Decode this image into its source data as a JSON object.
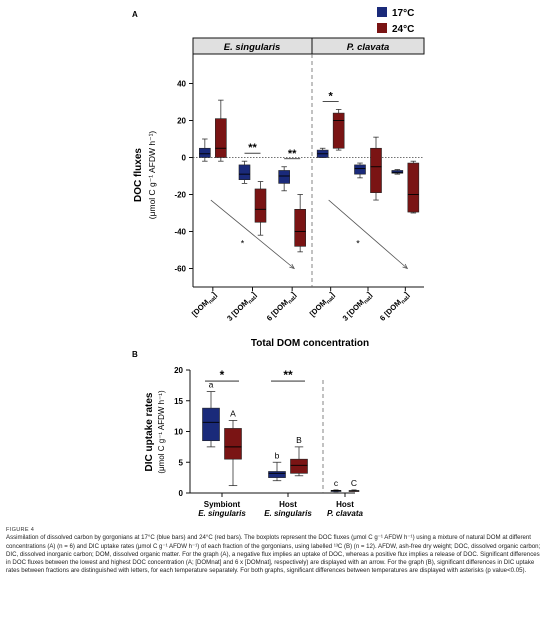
{
  "legend": {
    "items": [
      {
        "label": "17°C",
        "color": "#1a2a7a"
      },
      {
        "label": "24°C",
        "color": "#7a1414"
      }
    ],
    "placement": "top-right"
  },
  "panelA": {
    "letter": "A",
    "groups": [
      "E. singularis",
      "P. clavata"
    ],
    "ylabel_line1": "DOC fluxes",
    "ylabel_line2": "(μmol C g⁻¹ AFDW h⁻¹)",
    "xlabel": "Total DOM concentration",
    "sig_labels": [
      "**",
      "**",
      "*"
    ],
    "trend_label": "*"
  },
  "panelB": {
    "letter": "B",
    "ylabel_line1": "DIC uptake rates",
    "ylabel_line2": "(μmol C g⁻¹ AFDW h⁻¹)",
    "sig_labels": [
      "*",
      "**"
    ]
  },
  "chart_data": [
    {
      "id": "A",
      "type": "boxplot",
      "ylim": [
        -70,
        50
      ],
      "yticks": [
        -60,
        -40,
        -20,
        0,
        20,
        40
      ],
      "reference_line": 0,
      "categories": [
        "[DOMnat]",
        "3 [DOMnat]",
        "6 [DOMnat]",
        "[DOMnat]",
        "3 [DOMnat]",
        "6 [DOMnat]"
      ],
      "category_label_main": [
        "[DOM",
        "3 [DOM",
        "6 [DOM",
        "[DOM",
        "3 [DOM",
        "6 [DOM"
      ],
      "category_label_sub": "nat",
      "category_group": [
        "E. singularis",
        "E. singularis",
        "E. singularis",
        "P. clavata",
        "P. clavata",
        "P. clavata"
      ],
      "series": [
        {
          "name": "17°C",
          "boxes": [
            {
              "min": -2,
              "q1": 0,
              "median": 2,
              "q3": 5,
              "max": 10
            },
            {
              "min": -14,
              "q1": -12,
              "median": -9,
              "q3": -4,
              "max": -2
            },
            {
              "min": -18,
              "q1": -14,
              "median": -10,
              "q3": -7,
              "max": -5
            },
            {
              "min": 0,
              "q1": 0,
              "median": 2,
              "q3": 4,
              "max": 5
            },
            {
              "min": -11,
              "q1": -9,
              "median": -6,
              "q3": -4,
              "max": -3
            },
            {
              "min": -9,
              "q1": -8.5,
              "median": -8,
              "q3": -7,
              "max": -6.5
            }
          ]
        },
        {
          "name": "24°C",
          "boxes": [
            {
              "min": -2,
              "q1": 0,
              "median": 5,
              "q3": 21,
              "max": 31
            },
            {
              "min": -42,
              "q1": -35,
              "median": -28,
              "q3": -17,
              "max": -13
            },
            {
              "min": -51,
              "q1": -48,
              "median": -40,
              "q3": -28,
              "max": -20
            },
            {
              "min": 4,
              "q1": 5,
              "median": 20,
              "q3": 24,
              "max": 26
            },
            {
              "min": -23,
              "q1": -19,
              "median": -5,
              "q3": 5,
              "max": 11
            },
            {
              "min": -30,
              "q1": -29.5,
              "median": -20,
              "q3": -3,
              "max": -2
            }
          ]
        }
      ],
      "significance": [
        {
          "category": 1,
          "label": "**"
        },
        {
          "category": 2,
          "label": "**"
        },
        {
          "category": 3,
          "label": "*"
        }
      ]
    },
    {
      "id": "B",
      "type": "boxplot",
      "ylim": [
        0,
        20
      ],
      "yticks": [
        0,
        5,
        10,
        15,
        20
      ],
      "categories": [
        "Symbiont E. singularis",
        "Host E. singularis",
        "Host P. clavata"
      ],
      "category_line1": [
        "Symbiont",
        "Host",
        "Host"
      ],
      "category_line2": [
        "E. singularis",
        "E. singularis",
        "P. clavata"
      ],
      "series": [
        {
          "name": "17°C",
          "boxes": [
            {
              "min": 7.5,
              "q1": 8.5,
              "median": 11.5,
              "q3": 13.8,
              "max": 16.5
            },
            {
              "min": 2,
              "q1": 2.5,
              "median": 3.2,
              "q3": 3.5,
              "max": 5
            },
            {
              "min": 0.2,
              "q1": 0.3,
              "median": 0.4,
              "q3": 0.4,
              "max": 0.5
            }
          ]
        },
        {
          "name": "24°C",
          "boxes": [
            {
              "min": 1.2,
              "q1": 5.5,
              "median": 7.5,
              "q3": 10.5,
              "max": 11.8
            },
            {
              "min": 2.8,
              "q1": 3.2,
              "median": 4.5,
              "q3": 5.5,
              "max": 7.5
            },
            {
              "min": 0.3,
              "q1": 0.3,
              "median": 0.35,
              "q3": 0.4,
              "max": 0.5
            }
          ]
        }
      ],
      "letters": [
        {
          "category": 0,
          "series": 0,
          "label": "a"
        },
        {
          "category": 0,
          "series": 1,
          "label": "A"
        },
        {
          "category": 1,
          "series": 0,
          "label": "b"
        },
        {
          "category": 1,
          "series": 1,
          "label": "B"
        },
        {
          "category": 2,
          "series": 0,
          "label": "c"
        },
        {
          "category": 2,
          "series": 1,
          "label": "C"
        }
      ],
      "significance": [
        {
          "category": 0,
          "label": "*"
        },
        {
          "category": 1,
          "label": "**"
        }
      ]
    }
  ],
  "caption": {
    "label": "FIGURE 4",
    "text": "Assimilation of dissolved carbon by gorgonians at 17°C (blue bars) and 24°C (red bars). The boxplots represent the DOC fluxes (μmol C g⁻¹ AFDW h⁻¹) using a mixture of natural DOM at different concentrations (A) (n = 6) and DIC uptake rates (μmol C g⁻¹ AFDW h⁻¹) of each fraction of the gorgonians, using labelled ¹³C (B) (n = 12). AFDW, ash-free dry weight; DOC, dissolved organic carbon; DIC, dissolved inorganic carbon; DOM, dissolved organic matter. For the graph (A), a negative flux implies an uptake of DOC, whereas a positive flux implies a release of DOC. Significant differences in DOC fluxes between the lowest and highest DOC concentration (A; [DOMnat] and 6 x [DOMnat], respectively) are displayed with an arrow. For the graph (B), significant differences in DIC uptake rates between fractions are distinguished with letters, for each temperature separately. For both graphs, significant differences between temperatures are displayed with asterisks (p value<0.05)."
  }
}
